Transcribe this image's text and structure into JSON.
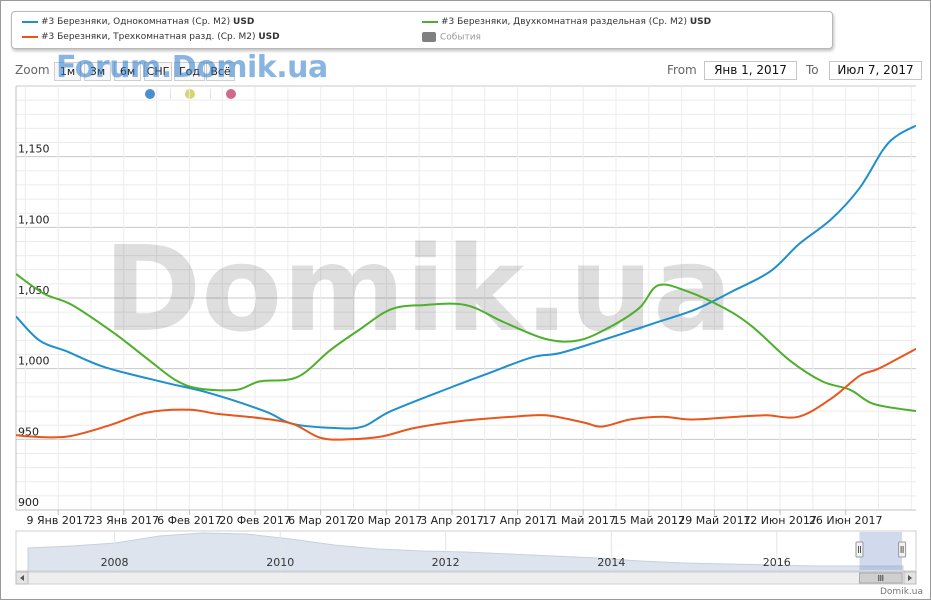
{
  "legend": {
    "items": [
      {
        "label": "#3 Березняки, Однокомнатная (Ср. М2)",
        "unit": "USD",
        "color": "#1f8fce"
      },
      {
        "label": "#3 Березняки, Двухкомнатная раздельная (Ср. М2)",
        "unit": "USD",
        "color": "#4cb02c"
      },
      {
        "label": "#3 Березняки, Трехкомнатная разд. (Ср. М2)",
        "unit": "USD",
        "color": "#e8561c"
      },
      {
        "label": "События",
        "unit": "",
        "color": "#808080"
      }
    ]
  },
  "range_selector": {
    "zoom_label": "Zoom",
    "buttons": [
      "1м",
      "3м",
      "6м",
      "СНГ",
      "Год",
      "Всё"
    ],
    "from_label": "From",
    "from_value": "Янв 1, 2017",
    "to_label": "To",
    "to_value": "Июл 7, 2017"
  },
  "watermark_top": "Forum.Domik.ua",
  "watermark_center": "Domik.ua",
  "credit": "Domik.ua",
  "dots": [
    {
      "color": "#4a8fcd"
    },
    {
      "color": "#d6d66e"
    },
    {
      "color": "#d06a8c"
    }
  ],
  "chart_data": {
    "type": "line",
    "x_unit": "date",
    "ylim": [
      900,
      1200
    ],
    "yticks": [
      900,
      950,
      1000,
      1050,
      1100,
      1150
    ],
    "ytick_labels": [
      "900",
      "950",
      "1,000",
      "1,050",
      "1,100",
      "1,150"
    ],
    "xlim": [
      "2016-12-31",
      "2017-07-07"
    ],
    "xticks": [
      "2017-01-09",
      "2017-01-23",
      "2017-02-06",
      "2017-02-20",
      "2017-03-06",
      "2017-03-20",
      "2017-04-03",
      "2017-04-17",
      "2017-05-01",
      "2017-05-15",
      "2017-05-29",
      "2017-06-12",
      "2017-06-26"
    ],
    "xtick_labels": [
      "9 Янв 2017",
      "23 Янв 2017",
      "6 Фев 2017",
      "20 Фев 2017",
      "6 Мар 2017",
      "20 Мар 2017",
      "3 Апр 2017",
      "17 Апр 2017",
      "1 Май 2017",
      "15 Май 2017",
      "29 Май 2017",
      "12 Июн 2017",
      "26 Июн 2017"
    ],
    "grid": true,
    "legend_position": "top",
    "series": [
      {
        "name": "#3 Березняки, Однокомнатная (Ср. М2)",
        "color": "#1f8fce",
        "points": [
          [
            "2016-12-31",
            1037
          ],
          [
            "2017-01-05",
            1020
          ],
          [
            "2017-01-11",
            1012
          ],
          [
            "2017-01-19",
            1001
          ],
          [
            "2017-02-01",
            990
          ],
          [
            "2017-02-10",
            983
          ],
          [
            "2017-02-22",
            970
          ],
          [
            "2017-02-28",
            961
          ],
          [
            "2017-03-09",
            958
          ],
          [
            "2017-03-15",
            959
          ],
          [
            "2017-03-21",
            970
          ],
          [
            "2017-04-03",
            987
          ],
          [
            "2017-04-11",
            997
          ],
          [
            "2017-04-20",
            1008
          ],
          [
            "2017-04-26",
            1011
          ],
          [
            "2017-05-04",
            1019
          ],
          [
            "2017-05-16",
            1032
          ],
          [
            "2017-05-25",
            1042
          ],
          [
            "2017-06-02",
            1055
          ],
          [
            "2017-06-10",
            1069
          ],
          [
            "2017-06-16",
            1088
          ],
          [
            "2017-06-23",
            1106
          ],
          [
            "2017-06-29",
            1128
          ],
          [
            "2017-07-04",
            1155
          ],
          [
            "2017-07-07",
            1165
          ],
          [
            "2017-07-11",
            1172
          ]
        ]
      },
      {
        "name": "#3 Березняки, Двухкомнатная раздельная (Ср. М2)",
        "color": "#4cb02c",
        "points": [
          [
            "2016-12-31",
            1067
          ],
          [
            "2017-01-06",
            1053
          ],
          [
            "2017-01-12",
            1045
          ],
          [
            "2017-01-21",
            1025
          ],
          [
            "2017-01-28",
            1007
          ],
          [
            "2017-02-03",
            992
          ],
          [
            "2017-02-08",
            986
          ],
          [
            "2017-02-16",
            985
          ],
          [
            "2017-02-21",
            991
          ],
          [
            "2017-03-01",
            994
          ],
          [
            "2017-03-08",
            1013
          ],
          [
            "2017-03-14",
            1027
          ],
          [
            "2017-03-21",
            1042
          ],
          [
            "2017-03-28",
            1045
          ],
          [
            "2017-04-06",
            1045
          ],
          [
            "2017-04-14",
            1033
          ],
          [
            "2017-04-23",
            1021
          ],
          [
            "2017-04-30",
            1020
          ],
          [
            "2017-05-07",
            1030
          ],
          [
            "2017-05-13",
            1043
          ],
          [
            "2017-05-17",
            1059
          ],
          [
            "2017-05-23",
            1055
          ],
          [
            "2017-05-31",
            1043
          ],
          [
            "2017-06-06",
            1030
          ],
          [
            "2017-06-14",
            1006
          ],
          [
            "2017-06-21",
            991
          ],
          [
            "2017-06-27",
            985
          ],
          [
            "2017-07-02",
            975
          ],
          [
            "2017-07-11",
            970
          ]
        ]
      },
      {
        "name": "#3 Березняки, Трехкомнатная разд. (Ср. М2)",
        "color": "#e8561c",
        "points": [
          [
            "2016-12-31",
            953
          ],
          [
            "2017-01-03",
            952
          ],
          [
            "2017-01-11",
            952
          ],
          [
            "2017-01-20",
            960
          ],
          [
            "2017-01-28",
            969
          ],
          [
            "2017-02-06",
            971
          ],
          [
            "2017-02-12",
            968
          ],
          [
            "2017-02-21",
            965
          ],
          [
            "2017-02-28",
            961
          ],
          [
            "2017-03-06",
            951
          ],
          [
            "2017-03-12",
            950
          ],
          [
            "2017-03-19",
            952
          ],
          [
            "2017-03-26",
            958
          ],
          [
            "2017-04-05",
            963
          ],
          [
            "2017-04-16",
            966
          ],
          [
            "2017-04-23",
            967
          ],
          [
            "2017-05-01",
            962
          ],
          [
            "2017-05-05",
            959
          ],
          [
            "2017-05-11",
            964
          ],
          [
            "2017-05-18",
            966
          ],
          [
            "2017-05-24",
            964
          ],
          [
            "2017-06-03",
            966
          ],
          [
            "2017-06-09",
            967
          ],
          [
            "2017-06-16",
            966
          ],
          [
            "2017-06-23",
            979
          ],
          [
            "2017-06-29",
            995
          ],
          [
            "2017-07-03",
            1000
          ],
          [
            "2017-07-11",
            1014
          ]
        ]
      }
    ],
    "navigator": {
      "year_labels": [
        "2008",
        "2010",
        "2012",
        "2014",
        "2016"
      ],
      "year_dates": [
        "2008-01-01",
        "2010-01-01",
        "2012-01-01",
        "2014-01-01",
        "2016-01-01"
      ],
      "range": [
        "2006-12-15",
        "2017-07-11"
      ],
      "selected_range": [
        "2016-12-31",
        "2017-07-07"
      ]
    }
  }
}
